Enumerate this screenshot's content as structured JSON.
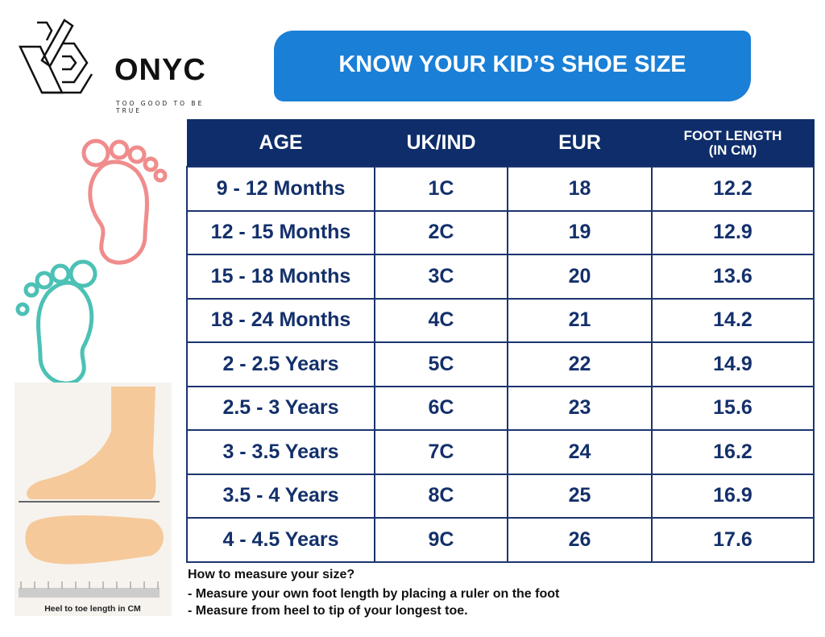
{
  "logo": {
    "name": "ONYC",
    "tagline": "TOO GOOD TO BE TRUE"
  },
  "title": "KNOW YOUR KID’S SHOE SIZE",
  "colors": {
    "banner": "#1a7fd6",
    "header": "#0e2d6a",
    "text": "#14306b",
    "pink_foot": "#f08c8c",
    "teal_foot": "#4cc1b5",
    "skin": "#f5c99a"
  },
  "table": {
    "headers": [
      "AGE",
      "UK/IND",
      "EUR",
      "FOOT LENGTH (IN CM)"
    ],
    "header_last_lines": [
      "FOOT LENGTH",
      "(IN CM)"
    ],
    "rows": [
      [
        "9 - 12 Months",
        "1C",
        "18",
        "12.2"
      ],
      [
        "12 - 15 Months",
        "2C",
        "19",
        "12.9"
      ],
      [
        "15 - 18 Months",
        "3C",
        "20",
        "13.6"
      ],
      [
        "18 - 24 Months",
        "4C",
        "21",
        "14.2"
      ],
      [
        "2 - 2.5 Years",
        "5C",
        "22",
        "14.9"
      ],
      [
        "2.5 - 3 Years",
        "6C",
        "23",
        "15.6"
      ],
      [
        "3 - 3.5 Years",
        "7C",
        "24",
        "16.2"
      ],
      [
        "3.5 - 4 Years",
        "8C",
        "25",
        "16.9"
      ],
      [
        "4 - 4.5 Years",
        "9C",
        "26",
        "17.6"
      ]
    ]
  },
  "instructions": {
    "heading": "How to measure your size?",
    "lines": [
      "- Measure your own foot length by placing a ruler on the foot",
      "- Measure from heel to tip of your longest toe."
    ]
  },
  "illustration_caption": "Heel to toe length in CM"
}
